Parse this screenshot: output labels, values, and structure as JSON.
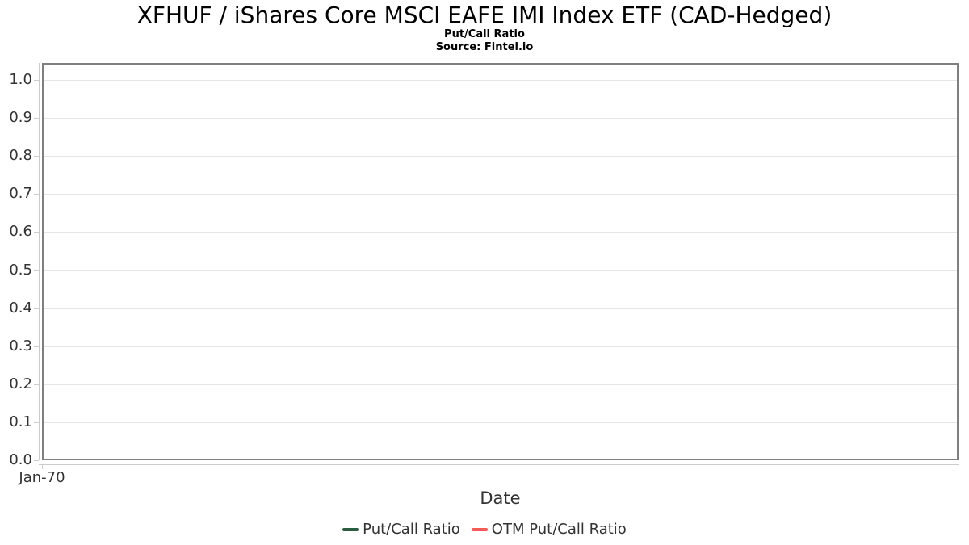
{
  "chart_data": {
    "type": "line",
    "title": "XFHUF / iShares Core MSCI EAFE IMI Index ETF (CAD-Hedged)",
    "subtitle": "Put/Call Ratio",
    "source": "Source: Fintel.io",
    "xlabel": "Date",
    "ylabel": "",
    "x": [
      "Jan-70"
    ],
    "series": [
      {
        "name": "Put/Call Ratio",
        "color": "#2c5d40",
        "values": []
      },
      {
        "name": "OTM Put/Call Ratio",
        "color": "#f85b57",
        "values": []
      }
    ],
    "ylim": [
      0.0,
      1.045
    ],
    "yticks": [
      "0.0",
      "0.1",
      "0.2",
      "0.3",
      "0.4",
      "0.5",
      "0.6",
      "0.7",
      "0.8",
      "0.9",
      "1.0"
    ],
    "grid": "horizontal",
    "legend_position": "bottom"
  },
  "colors": {
    "plot_border": "#7f7f7f",
    "gridline": "#e6e6e6",
    "axis_line": "#cccccc",
    "axis_text": "#333333",
    "title_text": "#000000",
    "background": "#ffffff"
  }
}
